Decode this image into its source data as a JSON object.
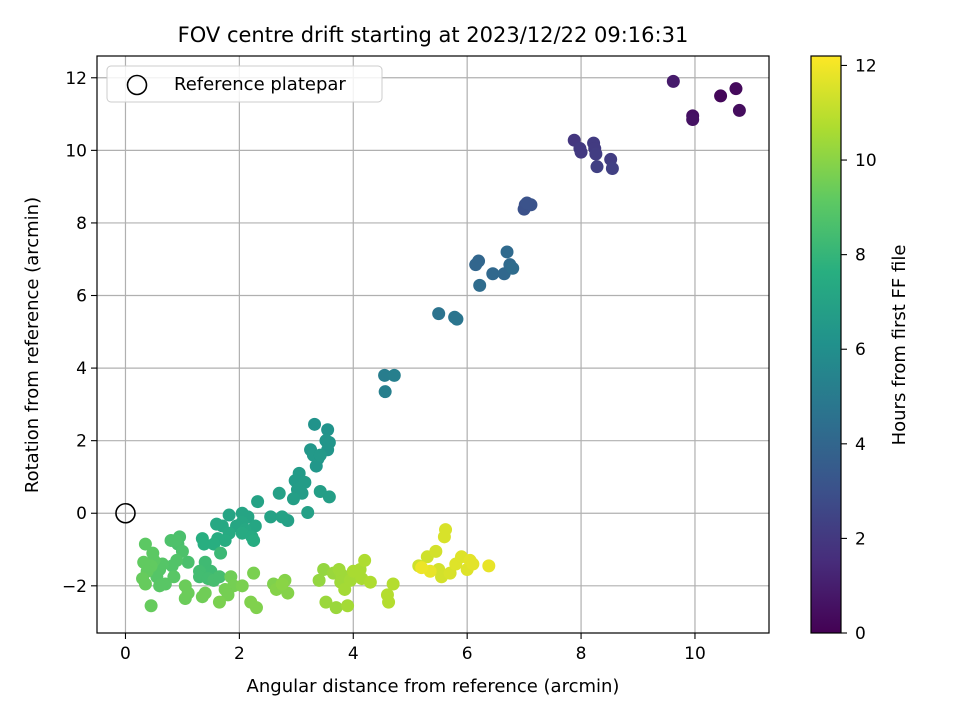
{
  "chart_data": {
    "type": "scatter",
    "title": "FOV centre drift starting at 2023/12/22 09:16:31",
    "xlabel": "Angular distance from reference (arcmin)",
    "ylabel": "Rotation from reference (arcmin)",
    "xlim": [
      -0.5,
      11.3
    ],
    "ylim": [
      -3.3,
      12.6
    ],
    "xticks": [
      0,
      2,
      4,
      6,
      8,
      10
    ],
    "yticks": [
      -2,
      0,
      2,
      4,
      6,
      8,
      10,
      12
    ],
    "grid": true,
    "legend": {
      "position": "top-left",
      "entries": [
        "Reference platepar"
      ]
    },
    "reference_point": {
      "x": 0,
      "y": 0,
      "label": "Reference platepar"
    },
    "colorbar": {
      "label": "Hours from first FF file",
      "colormap": "viridis",
      "range": [
        0,
        12.2
      ],
      "ticks": [
        0,
        2,
        4,
        6,
        8,
        10,
        12
      ]
    },
    "points": [
      {
        "x": 10.45,
        "y": 11.5,
        "h": 0.2
      },
      {
        "x": 10.72,
        "y": 11.7,
        "h": 0.3
      },
      {
        "x": 10.78,
        "y": 11.1,
        "h": 0.4
      },
      {
        "x": 9.96,
        "y": 10.95,
        "h": 0.5
      },
      {
        "x": 9.96,
        "y": 10.85,
        "h": 0.6
      },
      {
        "x": 9.62,
        "y": 11.9,
        "h": 0.9
      },
      {
        "x": 7.88,
        "y": 10.28,
        "h": 1.9
      },
      {
        "x": 7.98,
        "y": 10.05,
        "h": 2.0
      },
      {
        "x": 8.0,
        "y": 9.95,
        "h": 2.0
      },
      {
        "x": 8.22,
        "y": 10.2,
        "h": 2.1
      },
      {
        "x": 8.24,
        "y": 10.05,
        "h": 2.1
      },
      {
        "x": 8.26,
        "y": 9.9,
        "h": 2.2
      },
      {
        "x": 8.52,
        "y": 9.75,
        "h": 2.2
      },
      {
        "x": 8.55,
        "y": 9.5,
        "h": 2.3
      },
      {
        "x": 8.28,
        "y": 9.55,
        "h": 2.3
      },
      {
        "x": 7.02,
        "y": 8.5,
        "h": 3.0
      },
      {
        "x": 7.0,
        "y": 8.38,
        "h": 3.0
      },
      {
        "x": 7.12,
        "y": 8.5,
        "h": 3.1
      },
      {
        "x": 7.05,
        "y": 8.55,
        "h": 3.1
      },
      {
        "x": 6.2,
        "y": 6.95,
        "h": 4.0
      },
      {
        "x": 6.15,
        "y": 6.85,
        "h": 4.0
      },
      {
        "x": 6.45,
        "y": 6.6,
        "h": 4.1
      },
      {
        "x": 6.65,
        "y": 6.6,
        "h": 4.1
      },
      {
        "x": 6.7,
        "y": 7.2,
        "h": 4.2
      },
      {
        "x": 6.75,
        "y": 6.85,
        "h": 4.2
      },
      {
        "x": 6.8,
        "y": 6.75,
        "h": 4.3
      },
      {
        "x": 6.22,
        "y": 6.28,
        "h": 4.3
      },
      {
        "x": 5.5,
        "y": 5.5,
        "h": 4.6
      },
      {
        "x": 5.78,
        "y": 5.4,
        "h": 4.7
      },
      {
        "x": 5.82,
        "y": 5.35,
        "h": 4.7
      },
      {
        "x": 4.55,
        "y": 3.8,
        "h": 5.1
      },
      {
        "x": 4.72,
        "y": 3.8,
        "h": 5.2
      },
      {
        "x": 4.56,
        "y": 3.35,
        "h": 5.2
      },
      {
        "x": 3.32,
        "y": 2.45,
        "h": 6.2
      },
      {
        "x": 3.55,
        "y": 2.3,
        "h": 6.2
      },
      {
        "x": 3.52,
        "y": 2.0,
        "h": 6.3
      },
      {
        "x": 3.58,
        "y": 1.95,
        "h": 6.3
      },
      {
        "x": 3.55,
        "y": 1.75,
        "h": 6.3
      },
      {
        "x": 3.25,
        "y": 1.75,
        "h": 6.4
      },
      {
        "x": 3.38,
        "y": 1.5,
        "h": 6.4
      },
      {
        "x": 3.35,
        "y": 1.3,
        "h": 6.4
      },
      {
        "x": 3.3,
        "y": 1.6,
        "h": 6.5
      },
      {
        "x": 3.42,
        "y": 1.6,
        "h": 6.5
      },
      {
        "x": 3.05,
        "y": 1.1,
        "h": 6.6
      },
      {
        "x": 2.98,
        "y": 0.9,
        "h": 6.6
      },
      {
        "x": 3.02,
        "y": 0.65,
        "h": 6.7
      },
      {
        "x": 3.15,
        "y": 0.85,
        "h": 6.7
      },
      {
        "x": 3.1,
        "y": 0.55,
        "h": 6.7
      },
      {
        "x": 2.95,
        "y": 0.4,
        "h": 6.8
      },
      {
        "x": 3.42,
        "y": 0.6,
        "h": 6.8
      },
      {
        "x": 3.58,
        "y": 0.45,
        "h": 6.8
      },
      {
        "x": 2.7,
        "y": 0.55,
        "h": 6.9
      },
      {
        "x": 3.2,
        "y": 0.02,
        "h": 6.9
      },
      {
        "x": 2.85,
        "y": -0.2,
        "h": 6.9
      },
      {
        "x": 2.55,
        "y": -0.1,
        "h": 7.0
      },
      {
        "x": 2.75,
        "y": -0.1,
        "h": 7.0
      },
      {
        "x": 2.32,
        "y": 0.32,
        "h": 7.0
      },
      {
        "x": 1.82,
        "y": -0.05,
        "h": 7.1
      },
      {
        "x": 2.05,
        "y": 0.0,
        "h": 7.1
      },
      {
        "x": 2.15,
        "y": -0.1,
        "h": 7.1
      },
      {
        "x": 2.05,
        "y": -0.25,
        "h": 7.2
      },
      {
        "x": 1.95,
        "y": -0.35,
        "h": 7.2
      },
      {
        "x": 2.28,
        "y": -0.35,
        "h": 7.2
      },
      {
        "x": 2.1,
        "y": -0.45,
        "h": 7.3
      },
      {
        "x": 1.7,
        "y": -0.35,
        "h": 7.3
      },
      {
        "x": 1.6,
        "y": -0.3,
        "h": 7.3
      },
      {
        "x": 1.82,
        "y": -0.55,
        "h": 7.4
      },
      {
        "x": 2.05,
        "y": -0.55,
        "h": 7.4
      },
      {
        "x": 2.22,
        "y": -0.65,
        "h": 7.4
      },
      {
        "x": 2.25,
        "y": -0.75,
        "h": 7.5
      },
      {
        "x": 1.75,
        "y": -0.75,
        "h": 7.5
      },
      {
        "x": 1.62,
        "y": -0.7,
        "h": 7.5
      },
      {
        "x": 1.55,
        "y": -0.85,
        "h": 7.6
      },
      {
        "x": 1.35,
        "y": -0.7,
        "h": 7.6
      },
      {
        "x": 1.38,
        "y": -0.85,
        "h": 7.6
      },
      {
        "x": 1.67,
        "y": -1.1,
        "h": 8.2
      },
      {
        "x": 1.4,
        "y": -1.35,
        "h": 8.3
      },
      {
        "x": 1.5,
        "y": -1.6,
        "h": 8.3
      },
      {
        "x": 1.3,
        "y": -1.6,
        "h": 8.4
      },
      {
        "x": 1.3,
        "y": -1.75,
        "h": 8.4
      },
      {
        "x": 1.45,
        "y": -1.8,
        "h": 8.4
      },
      {
        "x": 1.55,
        "y": -1.85,
        "h": 8.5
      },
      {
        "x": 1.65,
        "y": -1.75,
        "h": 8.5
      },
      {
        "x": 1.1,
        "y": -1.35,
        "h": 8.6
      },
      {
        "x": 0.95,
        "y": -0.65,
        "h": 8.6
      },
      {
        "x": 0.92,
        "y": -0.85,
        "h": 8.6
      },
      {
        "x": 0.88,
        "y": -0.75,
        "h": 8.7
      },
      {
        "x": 0.8,
        "y": -0.75,
        "h": 8.7
      },
      {
        "x": 1.0,
        "y": -1.05,
        "h": 8.7
      },
      {
        "x": 0.9,
        "y": -1.3,
        "h": 8.8
      },
      {
        "x": 0.82,
        "y": -1.45,
        "h": 8.8
      },
      {
        "x": 0.65,
        "y": -1.4,
        "h": 8.9
      },
      {
        "x": 0.6,
        "y": -1.55,
        "h": 8.9
      },
      {
        "x": 0.55,
        "y": -1.75,
        "h": 8.9
      },
      {
        "x": 0.7,
        "y": -1.95,
        "h": 9.0
      },
      {
        "x": 0.85,
        "y": -1.75,
        "h": 9.0
      },
      {
        "x": 0.6,
        "y": -2.0,
        "h": 9.0
      },
      {
        "x": 0.48,
        "y": -1.1,
        "h": 9.1
      },
      {
        "x": 0.5,
        "y": -1.3,
        "h": 9.1
      },
      {
        "x": 0.35,
        "y": -0.85,
        "h": 9.1
      },
      {
        "x": 0.45,
        "y": -1.45,
        "h": 9.2
      },
      {
        "x": 0.32,
        "y": -1.35,
        "h": 9.2
      },
      {
        "x": 0.38,
        "y": -1.6,
        "h": 9.2
      },
      {
        "x": 0.3,
        "y": -1.8,
        "h": 9.3
      },
      {
        "x": 0.35,
        "y": -1.95,
        "h": 9.3
      },
      {
        "x": 0.45,
        "y": -2.55,
        "h": 9.3
      },
      {
        "x": 1.05,
        "y": -2.0,
        "h": 9.4
      },
      {
        "x": 1.1,
        "y": -2.2,
        "h": 9.4
      },
      {
        "x": 1.05,
        "y": -2.35,
        "h": 9.4
      },
      {
        "x": 1.4,
        "y": -2.2,
        "h": 9.5
      },
      {
        "x": 1.35,
        "y": -2.3,
        "h": 9.5
      },
      {
        "x": 1.85,
        "y": -1.75,
        "h": 9.5
      },
      {
        "x": 1.9,
        "y": -2.0,
        "h": 9.6
      },
      {
        "x": 1.75,
        "y": -2.1,
        "h": 9.6
      },
      {
        "x": 1.8,
        "y": -2.25,
        "h": 9.6
      },
      {
        "x": 1.65,
        "y": -2.45,
        "h": 9.7
      },
      {
        "x": 2.05,
        "y": -2.0,
        "h": 9.7
      },
      {
        "x": 2.25,
        "y": -1.65,
        "h": 9.7
      },
      {
        "x": 2.2,
        "y": -2.45,
        "h": 9.8
      },
      {
        "x": 2.3,
        "y": -2.6,
        "h": 9.8
      },
      {
        "x": 2.6,
        "y": -1.95,
        "h": 9.8
      },
      {
        "x": 2.65,
        "y": -2.1,
        "h": 9.9
      },
      {
        "x": 2.8,
        "y": -1.85,
        "h": 9.9
      },
      {
        "x": 2.85,
        "y": -2.2,
        "h": 9.9
      },
      {
        "x": 2.75,
        "y": -1.95,
        "h": 10.0
      },
      {
        "x": 3.4,
        "y": -1.85,
        "h": 10.2
      },
      {
        "x": 3.48,
        "y": -1.55,
        "h": 10.2
      },
      {
        "x": 3.52,
        "y": -2.45,
        "h": 10.3
      },
      {
        "x": 3.65,
        "y": -1.65,
        "h": 10.3
      },
      {
        "x": 3.7,
        "y": -2.6,
        "h": 10.3
      },
      {
        "x": 3.75,
        "y": -1.55,
        "h": 10.4
      },
      {
        "x": 3.8,
        "y": -1.7,
        "h": 10.4
      },
      {
        "x": 3.78,
        "y": -1.9,
        "h": 10.4
      },
      {
        "x": 3.85,
        "y": -2.1,
        "h": 10.5
      },
      {
        "x": 3.9,
        "y": -2.55,
        "h": 10.5
      },
      {
        "x": 3.95,
        "y": -1.85,
        "h": 10.5
      },
      {
        "x": 4.0,
        "y": -1.6,
        "h": 10.6
      },
      {
        "x": 4.12,
        "y": -1.55,
        "h": 10.6
      },
      {
        "x": 4.15,
        "y": -1.8,
        "h": 10.6
      },
      {
        "x": 4.2,
        "y": -1.3,
        "h": 10.7
      },
      {
        "x": 4.3,
        "y": -1.9,
        "h": 10.7
      },
      {
        "x": 4.6,
        "y": -2.25,
        "h": 10.8
      },
      {
        "x": 4.62,
        "y": -2.45,
        "h": 10.8
      },
      {
        "x": 4.7,
        "y": -1.95,
        "h": 10.8
      },
      {
        "x": 5.15,
        "y": -1.45,
        "h": 11.3
      },
      {
        "x": 5.3,
        "y": -1.2,
        "h": 11.3
      },
      {
        "x": 5.45,
        "y": -1.05,
        "h": 11.4
      },
      {
        "x": 5.5,
        "y": -1.55,
        "h": 11.4
      },
      {
        "x": 5.55,
        "y": -1.75,
        "h": 11.4
      },
      {
        "x": 5.6,
        "y": -0.65,
        "h": 11.5
      },
      {
        "x": 5.62,
        "y": -0.45,
        "h": 11.5
      },
      {
        "x": 5.7,
        "y": -1.65,
        "h": 11.5
      },
      {
        "x": 5.8,
        "y": -1.4,
        "h": 11.6
      },
      {
        "x": 5.9,
        "y": -1.2,
        "h": 11.6
      },
      {
        "x": 6.0,
        "y": -1.55,
        "h": 11.6
      },
      {
        "x": 6.05,
        "y": -1.3,
        "h": 11.7
      },
      {
        "x": 6.1,
        "y": -1.4,
        "h": 11.7
      },
      {
        "x": 6.38,
        "y": -1.45,
        "h": 11.8
      },
      {
        "x": 5.35,
        "y": -1.6,
        "h": 11.8
      },
      {
        "x": 5.2,
        "y": -1.5,
        "h": 11.9
      }
    ]
  }
}
